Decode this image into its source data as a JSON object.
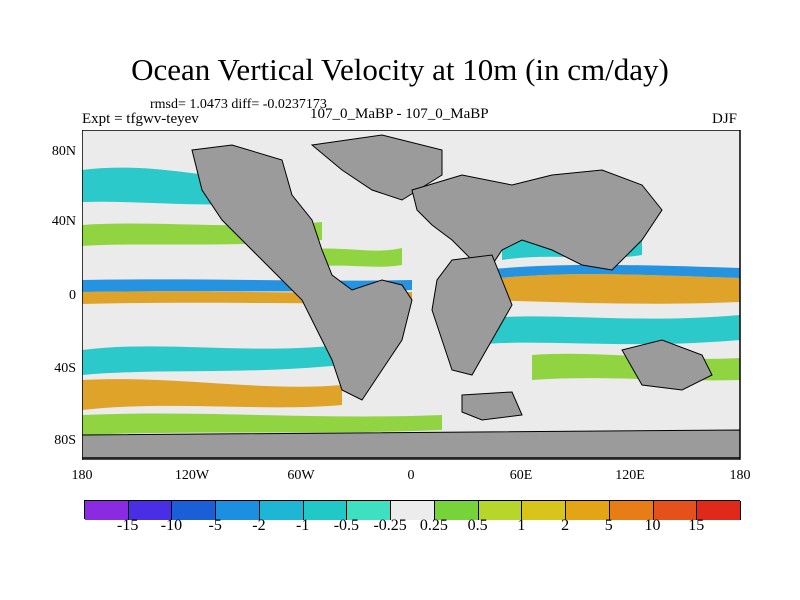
{
  "title": "Ocean Vertical Velocity at 10m (in cm/day)",
  "stats": "rmsd= 1.0473 diff= -0.0237173",
  "expt": "Expt = tfgwv-teyev",
  "case": "107_0_MaBP - 107_0_MaBP",
  "season": "DJF",
  "lat_ticks": [
    "80N",
    "40N",
    "0",
    "40S",
    "80S"
  ],
  "lon_ticks": [
    "180",
    "120W",
    "60W",
    "0",
    "60E",
    "120E",
    "180"
  ],
  "colorbar": {
    "labels": [
      "-15",
      "-10",
      "-5",
      "-2",
      "-1",
      "-0.5",
      "-0.25",
      "0.25",
      "0.5",
      "1",
      "2",
      "5",
      "10",
      "15"
    ],
    "colors": [
      "#8a2be2",
      "#4a2ee6",
      "#1a5ed8",
      "#1c8fe0",
      "#1fb6d6",
      "#21c8c8",
      "#3de0c0",
      "#ececec",
      "#76d43a",
      "#b6d62c",
      "#d7c51b",
      "#e3a416",
      "#e77d14",
      "#e4511a",
      "#e0291a"
    ]
  },
  "colors": {
    "land": "#9b9b9b",
    "ocean_background": "#ebebeb",
    "band_positive": "#e0a020",
    "band_negative": "#1c8fe0",
    "band_green": "#8cd33a",
    "band_cyan": "#21c8c8"
  }
}
